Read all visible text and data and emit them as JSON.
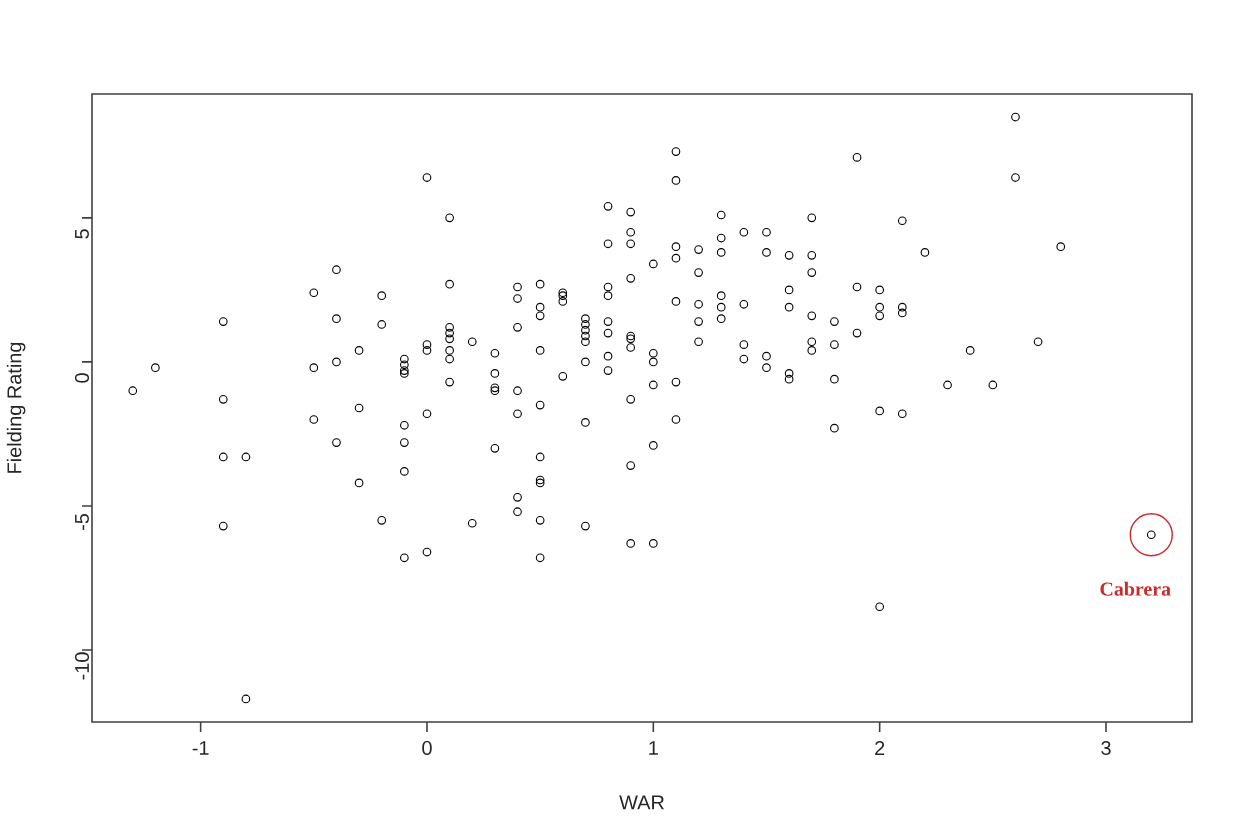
{
  "chart_data": {
    "type": "scatter",
    "xlabel": "WAR",
    "ylabel": "Fielding Rating",
    "marker": "circle",
    "color": "#000000",
    "xlim": [
      -1.48,
      3.38
    ],
    "ylim": [
      -12.5,
      9.3
    ],
    "xticks": [
      -1,
      0,
      1,
      2,
      3
    ],
    "yticks": [
      -10,
      -5,
      0,
      5
    ],
    "x": [
      0.0,
      0.1,
      -0.4,
      -0.5,
      -0.2,
      0.1,
      -0.9,
      -0.4,
      -0.2,
      0.1,
      0.1,
      0.1,
      -0.3,
      0.0,
      0.0,
      0.1,
      0.1,
      -0.1,
      -0.1,
      -0.1,
      -0.1,
      -0.5,
      -0.4,
      -1.2,
      -1.3,
      -0.9,
      0.1,
      -0.3,
      0.0,
      -0.5,
      -0.1,
      -0.1,
      -0.4,
      -0.9,
      -0.8,
      -0.1,
      -0.3,
      -0.2,
      0.2,
      -0.9,
      -0.1,
      0.0,
      -0.8,
      1.1,
      1.1,
      0.8,
      0.9,
      1.3,
      1.7,
      0.9,
      1.3,
      1.4,
      1.5,
      0.8,
      0.9,
      1.1,
      1.2,
      1.1,
      1.3,
      1.5,
      1.6,
      1.7,
      1.0,
      1.2,
      1.7,
      0.9,
      0.4,
      0.5,
      0.4,
      0.6,
      0.6,
      0.6,
      0.8,
      0.8,
      0.5,
      0.5,
      1.6,
      1.1,
      1.2,
      1.3,
      1.3,
      1.3,
      1.4,
      1.6,
      1.7,
      1.2,
      1.8,
      0.7,
      0.7,
      0.7,
      0.7,
      0.7,
      0.4,
      0.2,
      0.8,
      0.8,
      0.9,
      0.9,
      0.9,
      1.2,
      1.7,
      1.7,
      1.8,
      0.5,
      0.3,
      0.8,
      1.0,
      1.0,
      0.7,
      1.4,
      1.4,
      1.5,
      1.5,
      1.6,
      1.6,
      1.8,
      0.3,
      0.3,
      0.3,
      0.8,
      0.6,
      1.1,
      1.0,
      0.4,
      0.9,
      0.5,
      0.4,
      0.7,
      1.1,
      1.8,
      0.3,
      0.5,
      1.0,
      0.9,
      0.5,
      0.5,
      0.4,
      0.4,
      0.5,
      0.7,
      0.9,
      1.0,
      0.5,
      2.6,
      1.9,
      2.6,
      2.1,
      2.2,
      2.8,
      1.9,
      2.0,
      2.0,
      2.0,
      2.1,
      2.1,
      1.9,
      2.7,
      2.4,
      2.3,
      2.5,
      2.0,
      2.1,
      3.2,
      2.0
    ],
    "values": [
      6.4,
      5.0,
      3.2,
      2.4,
      2.3,
      2.7,
      1.4,
      1.5,
      1.3,
      1.2,
      1.0,
      0.8,
      0.4,
      0.6,
      0.4,
      0.4,
      0.1,
      0.1,
      -0.1,
      -0.3,
      -0.4,
      -0.2,
      0.0,
      -0.2,
      -1.0,
      -1.3,
      -0.7,
      -1.6,
      -1.8,
      -2.0,
      -2.2,
      -2.8,
      -2.8,
      -3.3,
      -3.3,
      -3.8,
      -4.2,
      -5.5,
      -5.6,
      -5.7,
      -6.8,
      -6.6,
      -11.7,
      7.3,
      6.3,
      5.4,
      5.2,
      5.1,
      5.0,
      4.5,
      4.3,
      4.5,
      4.5,
      4.1,
      4.1,
      4.0,
      3.9,
      3.6,
      3.8,
      3.8,
      3.7,
      3.7,
      3.4,
      3.1,
      3.1,
      2.9,
      2.6,
      2.7,
      2.2,
      2.4,
      2.3,
      2.1,
      2.6,
      2.3,
      1.9,
      1.6,
      2.5,
      2.1,
      2.0,
      2.3,
      1.9,
      1.5,
      2.0,
      1.9,
      1.6,
      1.4,
      1.4,
      1.5,
      1.3,
      1.1,
      0.9,
      0.7,
      1.2,
      0.7,
      1.4,
      1.0,
      0.9,
      0.8,
      0.5,
      0.7,
      0.7,
      0.4,
      0.6,
      0.4,
      0.3,
      0.2,
      0.3,
      0.0,
      0.0,
      0.6,
      0.1,
      0.2,
      -0.2,
      -0.4,
      -0.6,
      -0.6,
      -0.4,
      -0.9,
      -1.0,
      -0.3,
      -0.5,
      -0.7,
      -0.8,
      -1.0,
      -1.3,
      -1.5,
      -1.8,
      -2.1,
      -2.0,
      -2.3,
      -3.0,
      -3.3,
      -2.9,
      -3.6,
      -4.1,
      -4.2,
      -4.7,
      -5.2,
      -5.5,
      -5.7,
      -6.3,
      -6.3,
      -6.8,
      8.5,
      7.1,
      6.4,
      4.9,
      3.8,
      4.0,
      2.6,
      2.5,
      1.9,
      1.6,
      1.9,
      1.7,
      1.0,
      0.7,
      0.4,
      -0.8,
      -0.8,
      -1.7,
      -1.8,
      -6.0,
      -8.5
    ],
    "annotations": [
      {
        "text": "Cabrera",
        "x": 3.2,
        "y": -6.0
      }
    ]
  }
}
